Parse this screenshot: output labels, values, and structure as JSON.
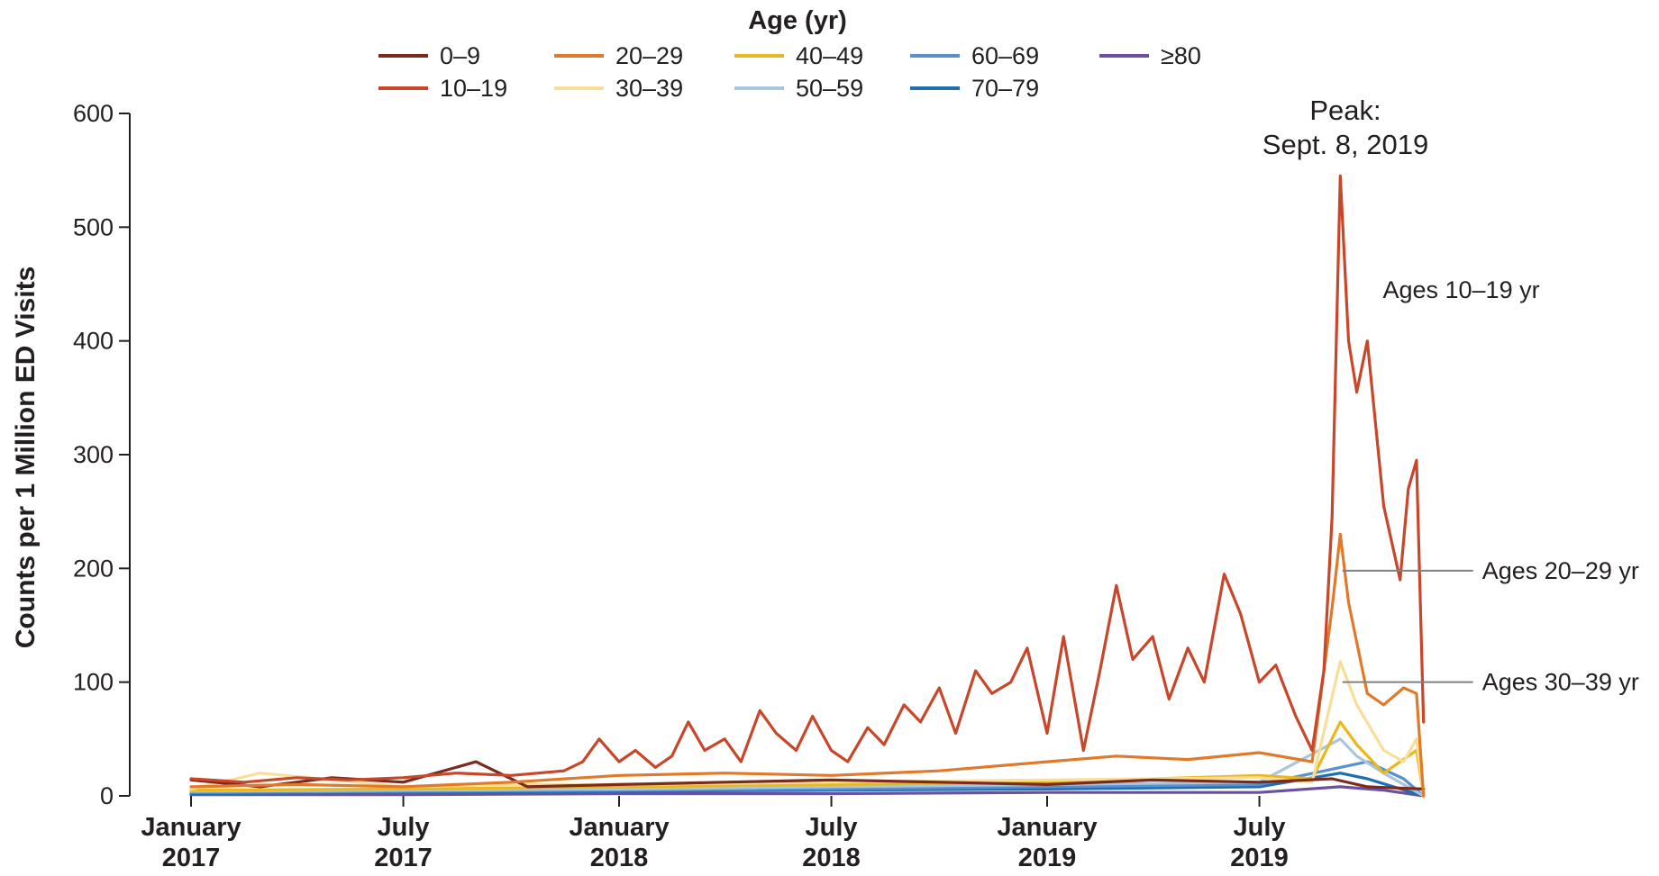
{
  "chart_data": {
    "type": "line",
    "title": "",
    "ylabel": "Counts per 1 Million ED Visits",
    "xlabel": "",
    "ylim": [
      0,
      600
    ],
    "y_ticks": [
      0,
      100,
      200,
      300,
      400,
      500,
      600
    ],
    "x_ticks": [
      {
        "line1": "January",
        "line2": "2017",
        "date": "2017-01-01"
      },
      {
        "line1": "July",
        "line2": "2017",
        "date": "2017-07-01"
      },
      {
        "line1": "January",
        "line2": "2018",
        "date": "2018-01-01"
      },
      {
        "line1": "July",
        "line2": "2018",
        "date": "2018-07-01"
      },
      {
        "line1": "January",
        "line2": "2019",
        "date": "2019-01-01"
      },
      {
        "line1": "July",
        "line2": "2019",
        "date": "2019-07-01"
      }
    ],
    "legend_title": "Age (yr)",
    "legend_position": "top-center",
    "grid": false,
    "series": [
      {
        "name": "0–9",
        "color": "#7b2a1c",
        "points": [
          [
            "2017-01-01",
            14
          ],
          [
            "2017-03-01",
            8
          ],
          [
            "2017-05-01",
            16
          ],
          [
            "2017-07-01",
            12
          ],
          [
            "2017-09-01",
            30
          ],
          [
            "2017-10-15",
            8
          ],
          [
            "2018-01-01",
            10
          ],
          [
            "2018-04-01",
            12
          ],
          [
            "2018-07-01",
            14
          ],
          [
            "2018-10-01",
            12
          ],
          [
            "2019-01-01",
            10
          ],
          [
            "2019-04-01",
            14
          ],
          [
            "2019-07-01",
            12
          ],
          [
            "2019-09-01",
            15
          ],
          [
            "2019-10-01",
            8
          ],
          [
            "2019-11-18",
            6
          ]
        ]
      },
      {
        "name": "10–19",
        "color": "#c8462a",
        "points": [
          [
            "2017-01-01",
            15
          ],
          [
            "2017-02-15",
            12
          ],
          [
            "2017-04-01",
            16
          ],
          [
            "2017-05-15",
            14
          ],
          [
            "2017-07-01",
            16
          ],
          [
            "2017-08-15",
            20
          ],
          [
            "2017-10-01",
            18
          ],
          [
            "2017-11-15",
            22
          ],
          [
            "2017-12-01",
            30
          ],
          [
            "2017-12-15",
            50
          ],
          [
            "2018-01-01",
            30
          ],
          [
            "2018-01-15",
            40
          ],
          [
            "2018-02-01",
            25
          ],
          [
            "2018-02-15",
            35
          ],
          [
            "2018-03-01",
            65
          ],
          [
            "2018-03-15",
            40
          ],
          [
            "2018-04-01",
            50
          ],
          [
            "2018-04-15",
            30
          ],
          [
            "2018-05-01",
            75
          ],
          [
            "2018-05-15",
            55
          ],
          [
            "2018-06-01",
            40
          ],
          [
            "2018-06-15",
            70
          ],
          [
            "2018-07-01",
            40
          ],
          [
            "2018-07-15",
            30
          ],
          [
            "2018-08-01",
            60
          ],
          [
            "2018-08-15",
            45
          ],
          [
            "2018-09-01",
            80
          ],
          [
            "2018-09-15",
            65
          ],
          [
            "2018-10-01",
            95
          ],
          [
            "2018-10-15",
            55
          ],
          [
            "2018-11-01",
            110
          ],
          [
            "2018-11-15",
            90
          ],
          [
            "2018-12-01",
            100
          ],
          [
            "2018-12-15",
            130
          ],
          [
            "2019-01-01",
            55
          ],
          [
            "2019-01-15",
            140
          ],
          [
            "2019-02-01",
            40
          ],
          [
            "2019-02-15",
            110
          ],
          [
            "2019-03-01",
            185
          ],
          [
            "2019-03-15",
            120
          ],
          [
            "2019-04-01",
            140
          ],
          [
            "2019-04-15",
            85
          ],
          [
            "2019-05-01",
            130
          ],
          [
            "2019-05-15",
            100
          ],
          [
            "2019-06-01",
            195
          ],
          [
            "2019-06-15",
            160
          ],
          [
            "2019-07-01",
            100
          ],
          [
            "2019-07-15",
            115
          ],
          [
            "2019-08-01",
            70
          ],
          [
            "2019-08-15",
            40
          ],
          [
            "2019-08-25",
            110
          ],
          [
            "2019-09-01",
            245
          ],
          [
            "2019-09-08",
            545
          ],
          [
            "2019-09-15",
            400
          ],
          [
            "2019-09-22",
            355
          ],
          [
            "2019-10-01",
            400
          ],
          [
            "2019-10-15",
            255
          ],
          [
            "2019-10-29",
            190
          ],
          [
            "2019-11-05",
            270
          ],
          [
            "2019-11-12",
            295
          ],
          [
            "2019-11-18",
            65
          ]
        ]
      },
      {
        "name": "20–29",
        "color": "#e07a2a",
        "points": [
          [
            "2017-01-01",
            8
          ],
          [
            "2017-04-01",
            10
          ],
          [
            "2017-07-01",
            8
          ],
          [
            "2017-10-01",
            12
          ],
          [
            "2018-01-01",
            18
          ],
          [
            "2018-04-01",
            20
          ],
          [
            "2018-07-01",
            18
          ],
          [
            "2018-10-01",
            22
          ],
          [
            "2019-01-01",
            30
          ],
          [
            "2019-03-01",
            35
          ],
          [
            "2019-05-01",
            32
          ],
          [
            "2019-07-01",
            38
          ],
          [
            "2019-08-15",
            30
          ],
          [
            "2019-09-01",
            165
          ],
          [
            "2019-09-08",
            230
          ],
          [
            "2019-09-15",
            170
          ],
          [
            "2019-10-01",
            90
          ],
          [
            "2019-10-15",
            80
          ],
          [
            "2019-11-01",
            95
          ],
          [
            "2019-11-12",
            90
          ],
          [
            "2019-11-18",
            0
          ]
        ]
      },
      {
        "name": "30–39",
        "color": "#f9de9a",
        "points": [
          [
            "2017-01-01",
            6
          ],
          [
            "2017-03-01",
            20
          ],
          [
            "2017-07-01",
            8
          ],
          [
            "2017-10-01",
            10
          ],
          [
            "2018-01-01",
            10
          ],
          [
            "2018-07-01",
            12
          ],
          [
            "2019-01-01",
            14
          ],
          [
            "2019-07-01",
            16
          ],
          [
            "2019-08-15",
            12
          ],
          [
            "2019-09-08",
            118
          ],
          [
            "2019-09-22",
            80
          ],
          [
            "2019-10-15",
            40
          ],
          [
            "2019-11-01",
            30
          ],
          [
            "2019-11-12",
            50
          ],
          [
            "2019-11-18",
            0
          ]
        ]
      },
      {
        "name": "40–49",
        "color": "#e9b91c",
        "points": [
          [
            "2017-01-01",
            5
          ],
          [
            "2017-07-01",
            6
          ],
          [
            "2018-01-01",
            8
          ],
          [
            "2018-07-01",
            10
          ],
          [
            "2019-01-01",
            12
          ],
          [
            "2019-07-01",
            18
          ],
          [
            "2019-08-15",
            15
          ],
          [
            "2019-09-08",
            65
          ],
          [
            "2019-09-22",
            45
          ],
          [
            "2019-10-15",
            20
          ],
          [
            "2019-11-12",
            40
          ],
          [
            "2019-11-18",
            0
          ]
        ]
      },
      {
        "name": "50–59",
        "color": "#a8c7dc",
        "points": [
          [
            "2017-01-01",
            4
          ],
          [
            "2017-07-01",
            5
          ],
          [
            "2018-01-01",
            6
          ],
          [
            "2018-07-01",
            8
          ],
          [
            "2019-01-01",
            10
          ],
          [
            "2019-07-01",
            12
          ],
          [
            "2019-09-08",
            50
          ],
          [
            "2019-09-22",
            35
          ],
          [
            "2019-10-15",
            20
          ],
          [
            "2019-11-18",
            0
          ]
        ]
      },
      {
        "name": "60–69",
        "color": "#5a8fd0",
        "points": [
          [
            "2017-01-01",
            3
          ],
          [
            "2017-07-01",
            4
          ],
          [
            "2018-01-01",
            5
          ],
          [
            "2018-07-01",
            6
          ],
          [
            "2019-01-01",
            8
          ],
          [
            "2019-07-01",
            10
          ],
          [
            "2019-09-08",
            25
          ],
          [
            "2019-10-01",
            30
          ],
          [
            "2019-11-01",
            15
          ],
          [
            "2019-11-18",
            0
          ]
        ]
      },
      {
        "name": "70–79",
        "color": "#1f6fb0",
        "points": [
          [
            "2017-01-01",
            2
          ],
          [
            "2017-07-01",
            3
          ],
          [
            "2018-01-01",
            4
          ],
          [
            "2018-07-01",
            5
          ],
          [
            "2019-01-01",
            6
          ],
          [
            "2019-07-01",
            8
          ],
          [
            "2019-09-08",
            20
          ],
          [
            "2019-10-01",
            15
          ],
          [
            "2019-11-18",
            0
          ]
        ]
      },
      {
        "name": "≥80",
        "color": "#6a4fa3",
        "points": [
          [
            "2017-01-01",
            1
          ],
          [
            "2017-07-01",
            1
          ],
          [
            "2018-01-01",
            2
          ],
          [
            "2018-07-01",
            2
          ],
          [
            "2019-01-01",
            3
          ],
          [
            "2019-07-01",
            3
          ],
          [
            "2019-09-08",
            8
          ],
          [
            "2019-10-15",
            5
          ],
          [
            "2019-11-18",
            0
          ]
        ]
      }
    ],
    "annotations": [
      {
        "text": "Ages 10–19 yr",
        "series": "10–19",
        "date": "2019-10-05",
        "value": 445
      },
      {
        "text": "Ages 20–29 yr",
        "series": "20–29",
        "date": "2019-11-18",
        "value": 198
      },
      {
        "text": "Ages 30–39 yr",
        "series": "30–39",
        "date": "2019-11-18",
        "value": 100
      }
    ],
    "peak": {
      "line1": "Peak:",
      "line2": "Sept. 8, 2019",
      "date": "2019-09-08",
      "value": 545
    }
  }
}
